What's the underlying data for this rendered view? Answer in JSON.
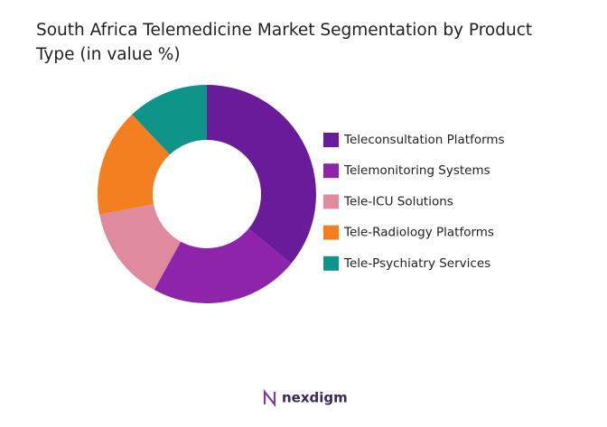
{
  "chart_data": {
    "type": "donut",
    "title": "South Africa Telemedicine Market Segmentation by Product Type (in value %)",
    "categories": [
      "Teleconsultation Platforms",
      "Telemonitoring Systems",
      "Tele-ICU Solutions",
      "Tele-Radiology Platforms",
      "Tele-Psychiatry Services"
    ],
    "values": [
      36,
      22,
      14,
      16,
      12
    ],
    "colors": [
      "#6a1b9a",
      "#8e24aa",
      "#e08a9e",
      "#f47f20",
      "#0e9488"
    ],
    "legend": "right"
  },
  "logo": {
    "text": "nexdigm"
  }
}
